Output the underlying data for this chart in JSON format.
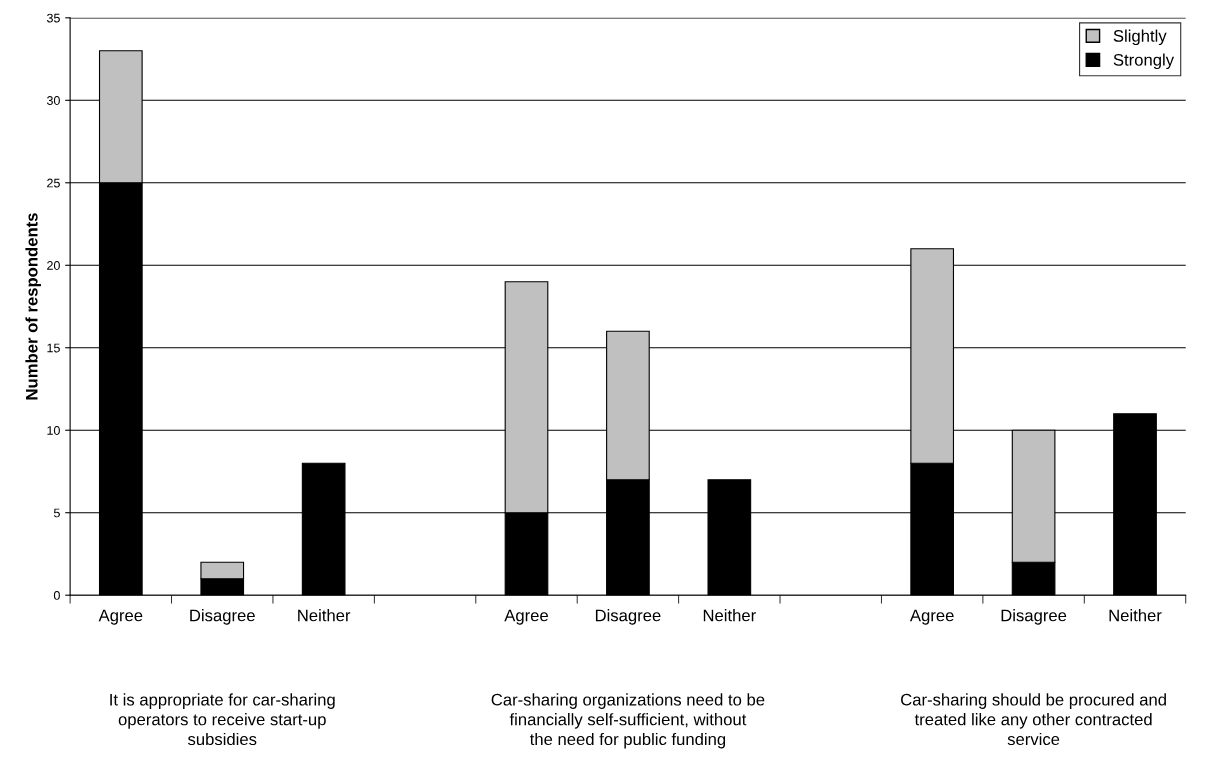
{
  "chart_data": {
    "type": "bar",
    "stacked": true,
    "ylabel": "Number of respondents",
    "categories": [
      "Agree",
      "Disagree",
      "Neither",
      null,
      "Agree",
      "Disagree",
      "Neither",
      null,
      "Agree",
      "Disagree",
      "Neither"
    ],
    "series": [
      {
        "name": "Strongly",
        "color": "#000000",
        "values": [
          25,
          1,
          8,
          null,
          5,
          7,
          7,
          null,
          8,
          2,
          11
        ]
      },
      {
        "name": "Slightly",
        "color": "#c0c0c0",
        "values": [
          8,
          1,
          null,
          null,
          14,
          9,
          null,
          null,
          13,
          8,
          null
        ]
      }
    ],
    "ylim": [
      0,
      35
    ],
    "yticks": [
      0,
      5,
      10,
      15,
      20,
      25,
      30,
      35
    ],
    "grid": "y",
    "legend": "top right",
    "annotations": [
      "It is appropriate for car-sharing\noperators to receive start-up\nsubsidies",
      "Car-sharing organizations need to be\nfinancially self-sufficient, without\nthe need for public funding",
      "Car-sharing should be procured and\ntreated like any other contracted\nservice"
    ]
  }
}
